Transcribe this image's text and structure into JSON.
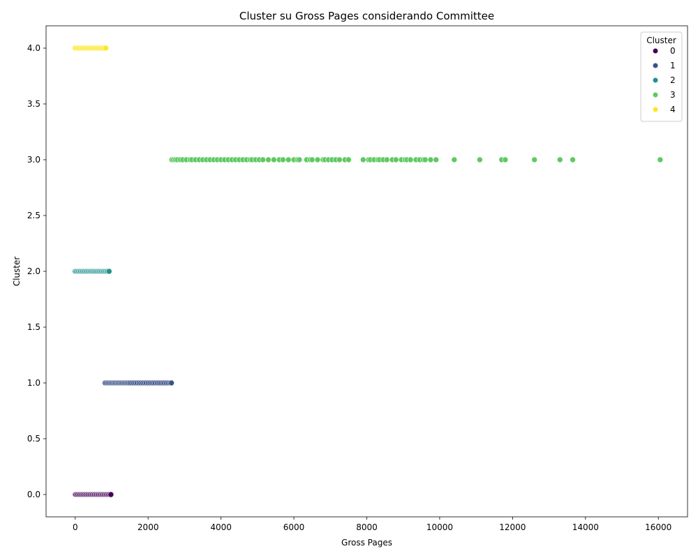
{
  "chart_data": {
    "type": "scatter",
    "title": "Cluster su Gross Pages considerando Committee",
    "xlabel": "Gross Pages",
    "ylabel": "Cluster",
    "xlim": [
      -800,
      16800
    ],
    "ylim": [
      -0.2,
      4.2
    ],
    "xticks": [
      0,
      2000,
      4000,
      6000,
      8000,
      10000,
      12000,
      14000,
      16000
    ],
    "yticks": [
      0.0,
      0.5,
      1.0,
      1.5,
      2.0,
      2.5,
      3.0,
      3.5,
      4.0
    ],
    "xtick_labels": [
      "0",
      "2000",
      "4000",
      "6000",
      "8000",
      "10000",
      "12000",
      "14000",
      "16000"
    ],
    "ytick_labels": [
      "0.0",
      "0.5",
      "1.0",
      "1.5",
      "2.0",
      "2.5",
      "3.0",
      "3.5",
      "4.0"
    ],
    "grid": false,
    "legend": {
      "title": "Cluster",
      "placement": "top-right",
      "entries": [
        "0",
        "1",
        "2",
        "3",
        "4"
      ]
    },
    "palette": [
      "#440154",
      "#3b528b",
      "#21918c",
      "#5ec962",
      "#fde725"
    ],
    "series": [
      {
        "name": "0",
        "y": 0,
        "x": [
          0,
          20,
          50,
          80,
          110,
          140,
          170,
          200,
          230,
          260,
          290,
          320,
          350,
          380,
          410,
          440,
          470,
          500,
          530,
          560,
          590,
          620,
          650,
          680,
          710,
          740,
          770,
          800,
          830,
          860,
          890,
          920,
          950,
          980
        ]
      },
      {
        "name": "1",
        "y": 1,
        "x": [
          820,
          860,
          900,
          940,
          980,
          1020,
          1060,
          1100,
          1140,
          1180,
          1220,
          1260,
          1300,
          1340,
          1380,
          1420,
          1460,
          1500,
          1550,
          1600,
          1650,
          1700,
          1750,
          1800,
          1850,
          1900,
          1950,
          2000,
          2050,
          2100,
          2150,
          2200,
          2250,
          2300,
          2350,
          2400,
          2450,
          2500,
          2550,
          2600,
          2640
        ]
      },
      {
        "name": "2",
        "y": 2,
        "x": [
          0,
          30,
          60,
          90,
          120,
          150,
          180,
          210,
          240,
          270,
          300,
          330,
          360,
          390,
          420,
          450,
          480,
          510,
          540,
          570,
          600,
          630,
          660,
          690,
          720,
          750,
          780,
          810,
          840,
          870,
          900,
          930
        ]
      },
      {
        "name": "3",
        "y": 3,
        "x": [
          2650,
          2700,
          2750,
          2800,
          2880,
          2950,
          3050,
          3150,
          3200,
          3300,
          3400,
          3500,
          3600,
          3700,
          3800,
          3900,
          4000,
          4100,
          4200,
          4300,
          4400,
          4500,
          4600,
          4700,
          4800,
          4850,
          4950,
          5050,
          5150,
          5300,
          5450,
          5600,
          5700,
          5850,
          6000,
          6100,
          6150,
          6350,
          6450,
          6500,
          6650,
          6800,
          6850,
          6950,
          7050,
          7150,
          7250,
          7400,
          7500,
          7900,
          8050,
          8100,
          8200,
          8300,
          8350,
          8450,
          8550,
          8700,
          8800,
          8950,
          9050,
          9100,
          9200,
          9350,
          9450,
          9550,
          9600,
          9750,
          9900,
          10400,
          11100,
          11700,
          11800,
          12600,
          13300,
          13650,
          16050
        ]
      },
      {
        "name": "4",
        "y": 4,
        "x": [
          0,
          40,
          80,
          120,
          160,
          200,
          240,
          280,
          320,
          360,
          400,
          440,
          480,
          520,
          560,
          600,
          640,
          680,
          720,
          760,
          800,
          840
        ]
      }
    ]
  }
}
